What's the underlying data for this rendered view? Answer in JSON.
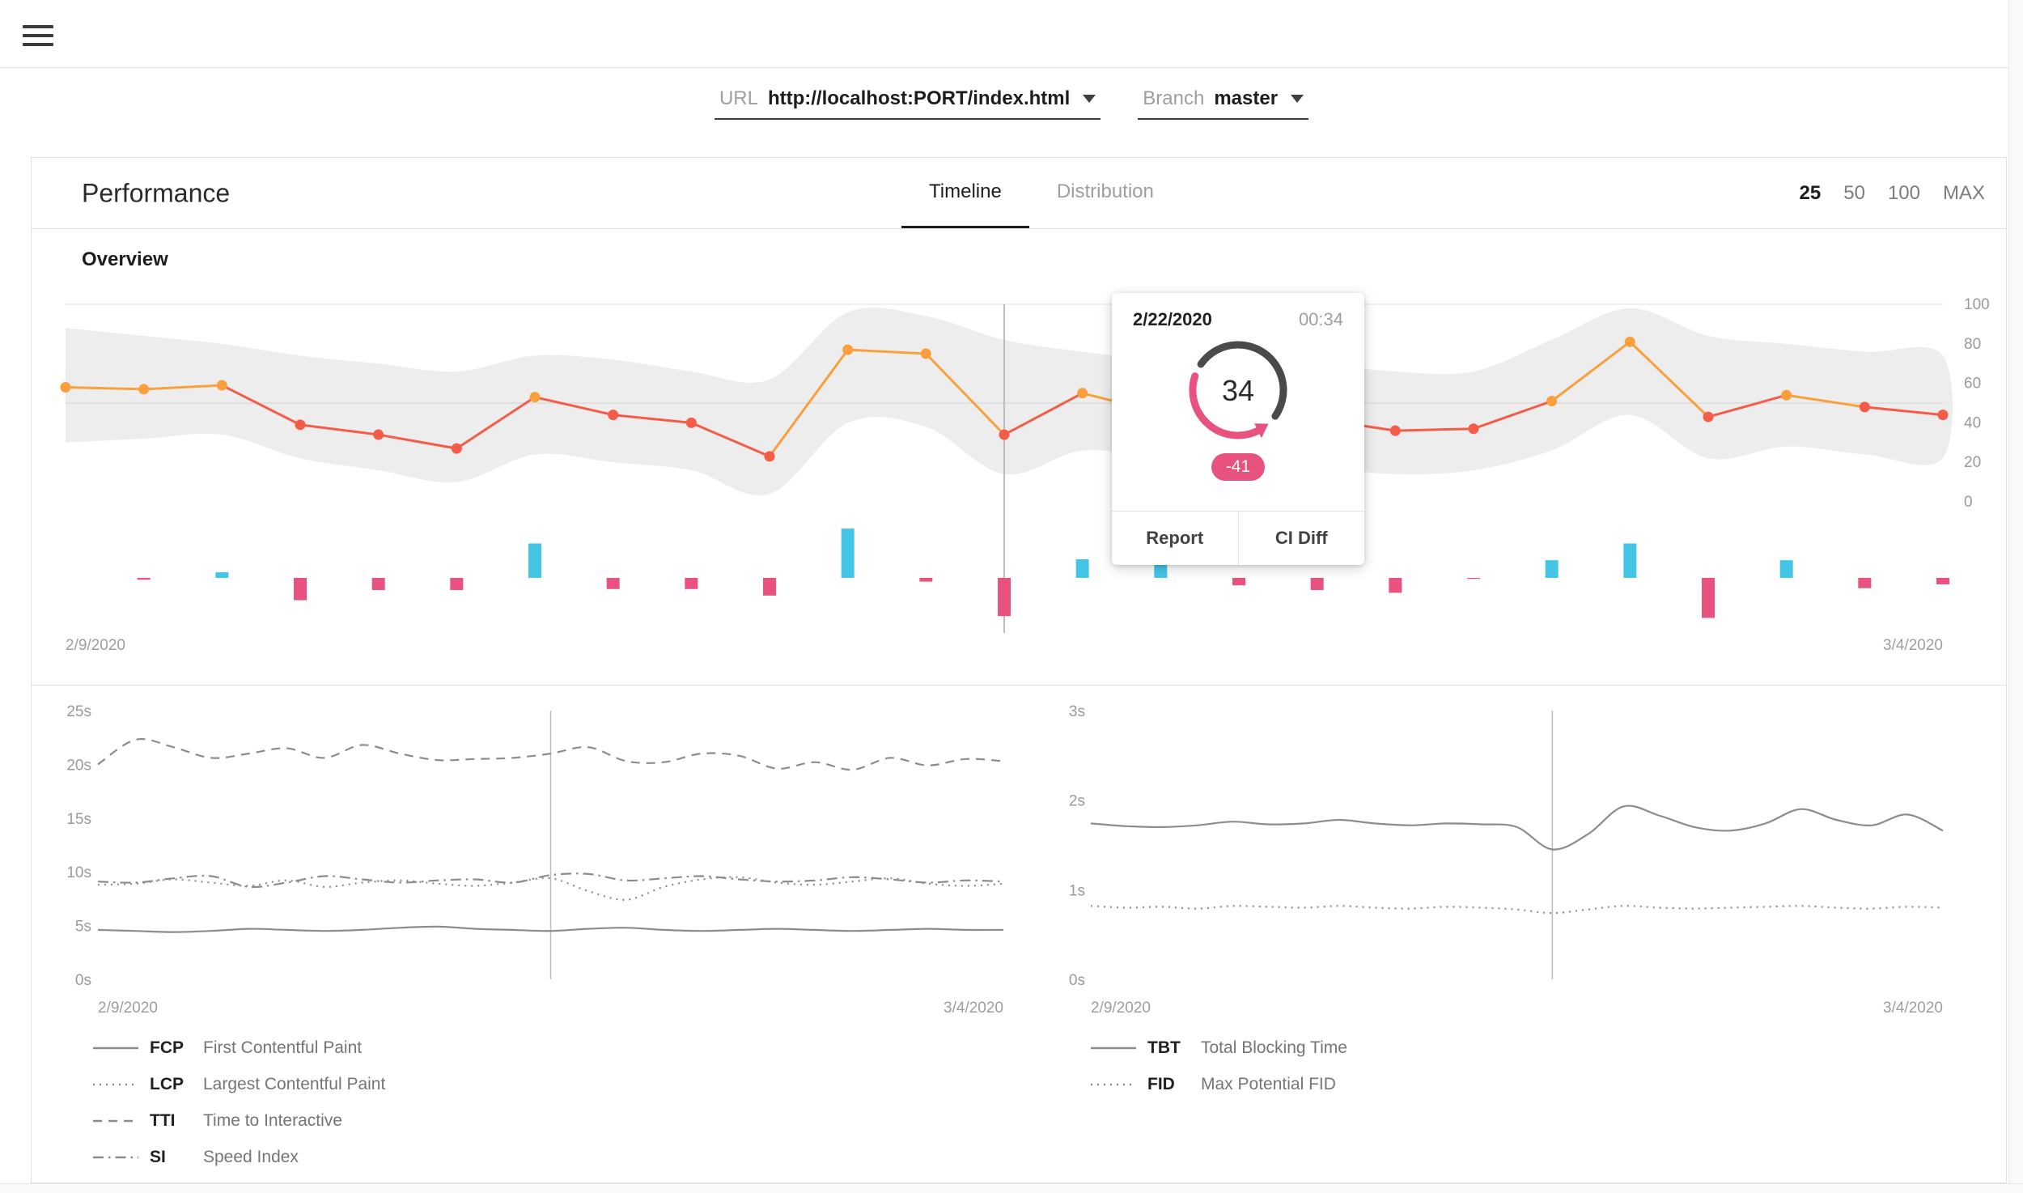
{
  "topbar": {
    "menu_icon": "hamburger"
  },
  "controls": {
    "url": {
      "label": "URL",
      "value": "http://localhost:PORT/index.html"
    },
    "branch": {
      "label": "Branch",
      "value": "master"
    }
  },
  "panel": {
    "title": "Performance",
    "tabs": [
      {
        "label": "Timeline",
        "active": true
      },
      {
        "label": "Distribution",
        "active": false
      }
    ],
    "limits": [
      {
        "label": "25",
        "active": true
      },
      {
        "label": "50",
        "active": false
      },
      {
        "label": "100",
        "active": false
      },
      {
        "label": "MAX",
        "active": false
      }
    ],
    "overview_title": "Overview"
  },
  "tooltip": {
    "date": "2/22/2020",
    "time": "00:34",
    "score": "34",
    "delta": "-41",
    "actions": [
      {
        "label": "Report"
      },
      {
        "label": "CI Diff"
      }
    ]
  },
  "colors": {
    "orange": "#F9A03C",
    "red": "#F45C48",
    "teal": "#45C5E5",
    "pink": "#E8527E",
    "band": "#EDEDED",
    "grid": "#E0E0E0",
    "grid_light": "#ECECEC",
    "hover_line": "#BDBDBD",
    "metric_line": "#8C8C8C"
  },
  "chart_data": [
    {
      "id": "overview-timeline",
      "type": "line+bar",
      "title": "Overview",
      "x_start_label": "2/9/2020",
      "x_end_label": "3/4/2020",
      "ylim": [
        0,
        100
      ],
      "y_ticks": [
        100,
        80,
        60,
        40,
        20,
        0
      ],
      "gridlines": [
        100,
        50
      ],
      "score_threshold": 50,
      "hover_index": 12,
      "scores": [
        58,
        57,
        59,
        39,
        34,
        27,
        53,
        44,
        40,
        23,
        77,
        75,
        34,
        55,
        45,
        50,
        42,
        36,
        37,
        51,
        81,
        43,
        54,
        48,
        44
      ],
      "band_upper": [
        88,
        84,
        80,
        74,
        70,
        66,
        74,
        72,
        66,
        62,
        96,
        94,
        82,
        76,
        72,
        72,
        70,
        66,
        66,
        82,
        98,
        84,
        80,
        76,
        74
      ],
      "band_lower": [
        30,
        32,
        34,
        22,
        16,
        10,
        24,
        20,
        16,
        4,
        40,
        38,
        14,
        26,
        22,
        24,
        18,
        14,
        16,
        26,
        44,
        22,
        28,
        24,
        22
      ],
      "diffs": [
        0,
        -2,
        6,
        -24,
        -13,
        -13,
        37,
        -12,
        -12,
        -19,
        53,
        -4,
        -41,
        20,
        18,
        -8,
        -13,
        -16,
        -1,
        19,
        37,
        -43,
        19,
        -11,
        -7
      ]
    },
    {
      "id": "paint-metrics",
      "type": "line",
      "y_max": 25,
      "y_ticks": [
        "25s",
        "20s",
        "15s",
        "10s",
        "5s",
        "0s"
      ],
      "x_start_label": "2/9/2020",
      "x_end_label": "3/4/2020",
      "hover_index": 12,
      "series": [
        {
          "abbr": "FCP",
          "name": "First Contentful Paint",
          "style": "solid",
          "values": [
            4.6,
            4.5,
            4.4,
            4.5,
            4.7,
            4.6,
            4.5,
            4.6,
            4.8,
            4.9,
            4.7,
            4.6,
            4.5,
            4.7,
            4.8,
            4.6,
            4.5,
            4.6,
            4.7,
            4.6,
            4.5,
            4.6,
            4.7,
            4.6,
            4.6
          ]
        },
        {
          "abbr": "LCP",
          "name": "Largest Contentful Paint",
          "style": "dotted",
          "values": [
            8.8,
            8.9,
            9.3,
            9.0,
            8.7,
            9.2,
            8.6,
            9.0,
            9.2,
            8.9,
            8.7,
            9.0,
            9.4,
            8.2,
            7.4,
            8.6,
            9.3,
            9.5,
            9.0,
            8.8,
            9.1,
            9.4,
            8.9,
            8.7,
            8.9
          ]
        },
        {
          "abbr": "TTI",
          "name": "Time to Interactive",
          "style": "dashed",
          "values": [
            20.0,
            22.3,
            21.6,
            20.6,
            21.0,
            21.5,
            20.6,
            21.8,
            21.0,
            20.4,
            20.5,
            20.6,
            21.0,
            21.6,
            20.3,
            20.2,
            21.0,
            20.8,
            19.6,
            20.2,
            19.5,
            20.6,
            19.9,
            20.5,
            20.3
          ]
        },
        {
          "abbr": "SI",
          "name": "Speed Index",
          "style": "dashdot",
          "values": [
            9.1,
            9.0,
            9.4,
            9.6,
            8.6,
            9.0,
            9.6,
            9.3,
            9.0,
            9.2,
            9.3,
            9.0,
            9.7,
            9.8,
            9.2,
            9.4,
            9.6,
            9.3,
            9.1,
            9.2,
            9.5,
            9.3,
            9.0,
            9.2,
            9.1
          ]
        }
      ]
    },
    {
      "id": "blocking-metrics",
      "type": "line",
      "y_max": 3,
      "y_ticks": [
        "3s",
        "2s",
        "1s",
        "0s"
      ],
      "x_start_label": "2/9/2020",
      "x_end_label": "3/4/2020",
      "hover_index": 13,
      "series": [
        {
          "abbr": "TBT",
          "name": "Total Blocking Time",
          "style": "solid",
          "values": [
            1.74,
            1.71,
            1.7,
            1.72,
            1.76,
            1.73,
            1.74,
            1.78,
            1.74,
            1.72,
            1.74,
            1.73,
            1.7,
            1.45,
            1.62,
            1.93,
            1.83,
            1.7,
            1.66,
            1.74,
            1.9,
            1.78,
            1.72,
            1.84,
            1.66
          ]
        },
        {
          "abbr": "FID",
          "name": "Max Potential FID",
          "style": "dotted",
          "values": [
            0.82,
            0.8,
            0.81,
            0.79,
            0.82,
            0.81,
            0.8,
            0.82,
            0.8,
            0.79,
            0.81,
            0.8,
            0.78,
            0.74,
            0.78,
            0.82,
            0.8,
            0.79,
            0.8,
            0.81,
            0.82,
            0.8,
            0.79,
            0.81,
            0.8
          ]
        }
      ]
    }
  ]
}
